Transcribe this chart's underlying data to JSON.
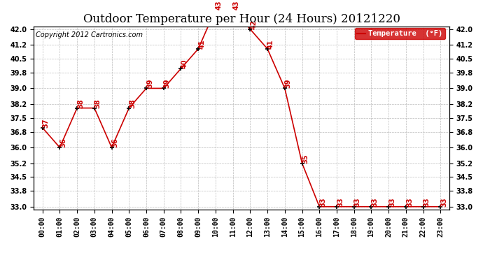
{
  "title": "Outdoor Temperature per Hour (24 Hours) 20121220",
  "copyright": "Copyright 2012 Cartronics.com",
  "legend_label": "Temperature  (°F)",
  "hours": [
    "00:00",
    "01:00",
    "02:00",
    "03:00",
    "04:00",
    "05:00",
    "06:00",
    "07:00",
    "08:00",
    "09:00",
    "10:00",
    "11:00",
    "12:00",
    "13:00",
    "14:00",
    "15:00",
    "16:00",
    "17:00",
    "18:00",
    "19:00",
    "20:00",
    "21:00",
    "22:00",
    "23:00"
  ],
  "temperatures": [
    37.0,
    36.0,
    38.0,
    38.0,
    36.0,
    38.0,
    39.0,
    39.0,
    40.0,
    41.0,
    43.0,
    43.0,
    42.0,
    41.0,
    39.0,
    35.2,
    33.0,
    33.0,
    33.0,
    33.0,
    33.0,
    33.0,
    33.0,
    33.0
  ],
  "temp_labels": [
    "37",
    "36",
    "38",
    "38",
    "36",
    "38",
    "39",
    "39",
    "40",
    "41",
    "43",
    "43",
    "42",
    "41",
    "39",
    "35",
    "33",
    "33",
    "33",
    "33",
    "33",
    "33",
    "33",
    "33"
  ],
  "line_color": "#cc0000",
  "marker_color": "#000000",
  "label_color": "#cc0000",
  "grid_color": "#bbbbbb",
  "background_color": "#ffffff",
  "ylim_min": 33.0,
  "ylim_max": 42.0,
  "yticks": [
    33.0,
    33.8,
    34.5,
    35.2,
    36.0,
    36.8,
    37.5,
    38.2,
    39.0,
    39.8,
    40.5,
    41.2,
    42.0
  ],
  "legend_bg": "#cc0000",
  "legend_text_color": "#ffffff",
  "title_fontsize": 12,
  "copyright_fontsize": 7,
  "label_fontsize": 7,
  "tick_fontsize": 7
}
